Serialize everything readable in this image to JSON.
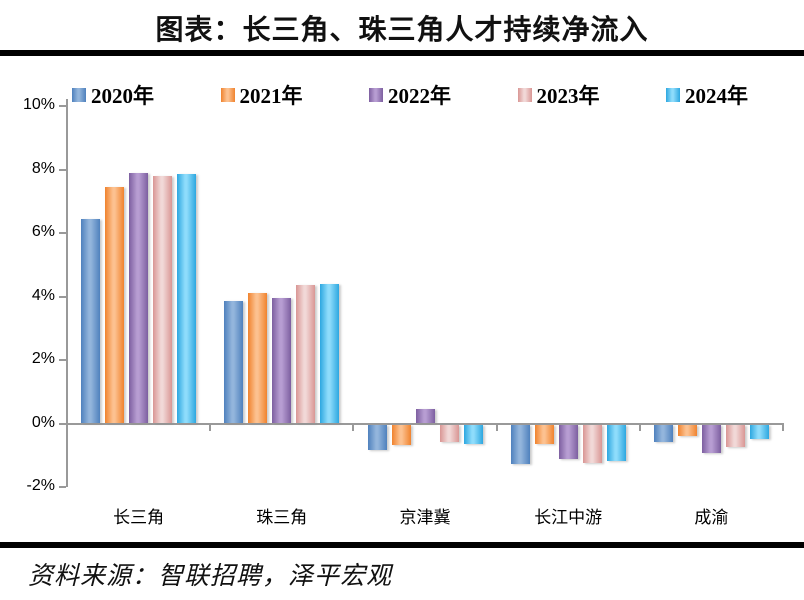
{
  "title": "图表：长三角、珠三角人才持续净流入",
  "source": "资料来源：智联招聘，泽平宏观",
  "chart_data": {
    "type": "bar",
    "title": "图表：长三角、珠三角人才持续净流入",
    "categories": [
      "长三角",
      "珠三角",
      "京津冀",
      "长江中游",
      "成渝"
    ],
    "series": [
      {
        "name": "2020年",
        "color": "#4F81BD",
        "color_light": "#93B5DC",
        "values": [
          6.45,
          3.85,
          -0.8,
          -1.25,
          -0.55
        ]
      },
      {
        "name": "2021年",
        "color": "#F0832E",
        "color_light": "#FCC190",
        "values": [
          7.45,
          4.1,
          -0.65,
          -0.6,
          -0.35
        ]
      },
      {
        "name": "2022年",
        "color": "#7D5FA0",
        "color_light": "#B79DD2",
        "values": [
          7.9,
          3.95,
          0.45,
          -1.1,
          -0.9
        ]
      },
      {
        "name": "2023年",
        "color": "#D99694",
        "color_light": "#F1D8D7",
        "values": [
          7.8,
          4.35,
          -0.55,
          -1.2,
          -0.7
        ]
      },
      {
        "name": "2024年",
        "color": "#2DA7E0",
        "color_light": "#8EDCFB",
        "values": [
          7.85,
          4.4,
          -0.6,
          -1.15,
          -0.45
        ]
      }
    ],
    "ylim": [
      -2,
      10
    ],
    "ytick_step": 2,
    "ytick_labels": [
      "10%",
      "8%",
      "6%",
      "4%",
      "2%",
      "0%",
      "-2%"
    ],
    "ylabel": "",
    "xlabel": "",
    "legend_position": "top",
    "grid": false
  }
}
